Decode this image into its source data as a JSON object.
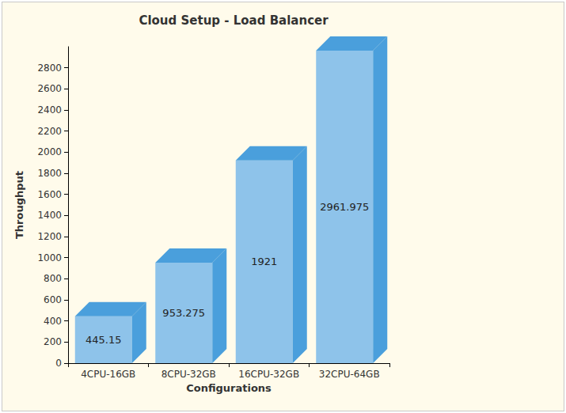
{
  "chart_data": {
    "type": "bar",
    "title": "Cloud Setup - Load Balancer",
    "x_label": "Configurations",
    "y_label": "Throughput",
    "categories": [
      "4CPU-16GB",
      "8CPU-32GB",
      "16CPU-32GB",
      "32CPU-64GB"
    ],
    "values": [
      445.15,
      953.275,
      1921,
      2961.975
    ],
    "color": "#8ec3ea",
    "ylim": [
      0,
      3000
    ],
    "yticks": [
      0,
      200,
      400,
      600,
      800,
      1000,
      1200,
      1400,
      1600,
      1800,
      2000,
      2200,
      2400,
      2600,
      2800
    ],
    "grid": false,
    "data_labels": true
  }
}
